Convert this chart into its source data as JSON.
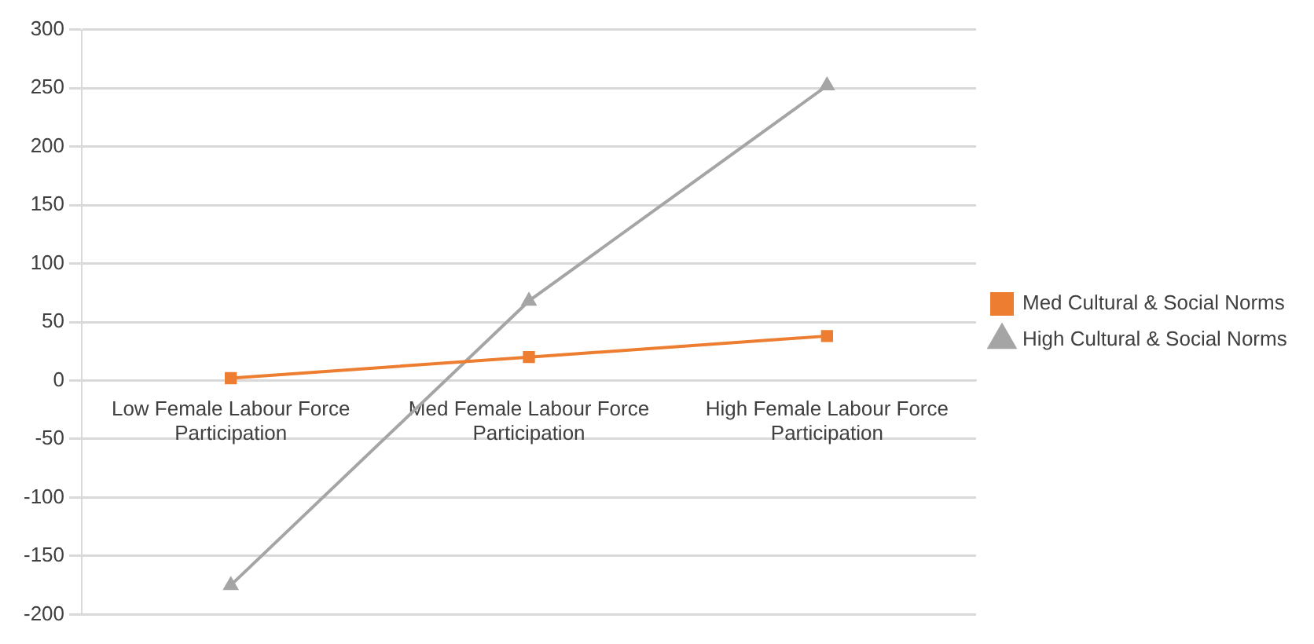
{
  "chart_data": {
    "type": "line",
    "categories": [
      "Low Female Labour Force Participation",
      "Med Female Labour Force Participation",
      "High Female Labour Force Participation"
    ],
    "series": [
      {
        "name": "Med Cultural & Social Norms",
        "color": "#ed7d31",
        "marker": "square",
        "values": [
          2,
          20,
          38
        ]
      },
      {
        "name": "High Cultural & Social Norms",
        "color": "#a5a5a5",
        "marker": "triangle",
        "values": [
          -175,
          68,
          252
        ]
      }
    ],
    "ylim": [
      -200,
      300
    ],
    "yticks": [
      -200,
      -150,
      -100,
      -50,
      0,
      50,
      100,
      150,
      200,
      250,
      300
    ],
    "grid": "y",
    "legend": "right",
    "line_style": "solid"
  }
}
